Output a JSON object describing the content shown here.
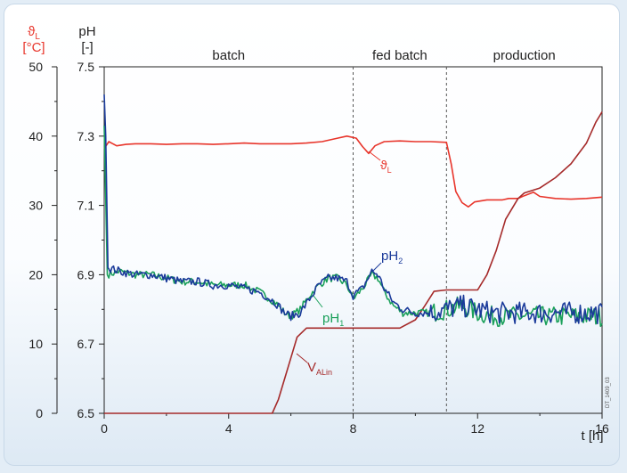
{
  "chart_data": {
    "type": "line",
    "title": "",
    "xlabel": "t [h]",
    "x_ticks": [
      0,
      4,
      8,
      12,
      16
    ],
    "xlim": [
      0,
      16
    ],
    "y_left_temp": {
      "label_symbol": "ϑ",
      "label_sub": "L",
      "label_unit": "[°C]",
      "ticks": [
        0,
        10,
        20,
        30,
        40,
        50
      ],
      "ylim": [
        0,
        50
      ],
      "color": "#e8352b"
    },
    "y_left_ph": {
      "label": "pH",
      "label_unit": "[-]",
      "ticks": [
        "6.5",
        "6.7",
        "6.9",
        "7.1",
        "7.3",
        "7.5"
      ],
      "ylim": [
        6.5,
        7.5
      ],
      "color": "#222222"
    },
    "phases": [
      {
        "name": "batch",
        "x_center": 4
      },
      {
        "name": "fed batch",
        "x_center": 9.5
      },
      {
        "name": "production",
        "x_center": 13.5
      }
    ],
    "phase_boundaries": [
      8,
      11
    ],
    "watermark": "DT_1409_03",
    "series": [
      {
        "key": "temp",
        "label_symbol": "ϑ",
        "label_sub": "L",
        "color": "#e8352b",
        "axis": "temp",
        "points": [
          [
            0,
            38.2
          ],
          [
            0.15,
            39.2
          ],
          [
            0.4,
            38.6
          ],
          [
            0.7,
            38.8
          ],
          [
            1,
            38.9
          ],
          [
            1.5,
            38.9
          ],
          [
            2,
            38.8
          ],
          [
            2.5,
            38.9
          ],
          [
            3,
            38.9
          ],
          [
            3.5,
            38.8
          ],
          [
            4,
            38.9
          ],
          [
            4.5,
            39
          ],
          [
            5,
            38.9
          ],
          [
            5.5,
            38.9
          ],
          [
            6,
            38.9
          ],
          [
            6.5,
            39
          ],
          [
            7,
            39.2
          ],
          [
            7.5,
            39.7
          ],
          [
            7.8,
            40
          ],
          [
            8.1,
            39.7
          ],
          [
            8.3,
            38.5
          ],
          [
            8.5,
            37.5
          ],
          [
            8.7,
            38.6
          ],
          [
            9,
            39.2
          ],
          [
            9.5,
            39.3
          ],
          [
            10,
            39.2
          ],
          [
            10.5,
            39.2
          ],
          [
            11,
            39.1
          ],
          [
            11.15,
            36
          ],
          [
            11.3,
            32
          ],
          [
            11.5,
            30.4
          ],
          [
            11.7,
            29.8
          ],
          [
            11.9,
            30.5
          ],
          [
            12.3,
            30.8
          ],
          [
            12.8,
            30.8
          ],
          [
            13,
            31
          ],
          [
            13.3,
            31
          ],
          [
            13.5,
            31.4
          ],
          [
            13.8,
            31.9
          ],
          [
            14,
            31.3
          ],
          [
            14.5,
            31
          ],
          [
            15,
            30.9
          ],
          [
            15.5,
            31
          ],
          [
            16,
            31.2
          ]
        ]
      },
      {
        "key": "volume",
        "label_symbol": "V",
        "label_sub": "ALin",
        "color": "#a52a2a",
        "axis": "temp",
        "points": [
          [
            0,
            0
          ],
          [
            5.4,
            0
          ],
          [
            5.6,
            2
          ],
          [
            5.8,
            5
          ],
          [
            6,
            8
          ],
          [
            6.2,
            11
          ],
          [
            6.5,
            12.3
          ],
          [
            7,
            12.3
          ],
          [
            8,
            12.3
          ],
          [
            9,
            12.3
          ],
          [
            9.5,
            12.3
          ],
          [
            10,
            13.5
          ],
          [
            10.3,
            15.5
          ],
          [
            10.6,
            17.6
          ],
          [
            11,
            17.8
          ],
          [
            11.5,
            17.8
          ],
          [
            12,
            17.8
          ],
          [
            12.3,
            20
          ],
          [
            12.6,
            23.5
          ],
          [
            12.9,
            28
          ],
          [
            13.3,
            31
          ],
          [
            13.5,
            31.8
          ],
          [
            14,
            32.5
          ],
          [
            14.5,
            34
          ],
          [
            15,
            36
          ],
          [
            15.5,
            39
          ],
          [
            15.8,
            42
          ],
          [
            16,
            43.5
          ]
        ]
      },
      {
        "key": "ph1",
        "label": "pH",
        "label_sub": "1",
        "color": "#1aa05a",
        "axis": "ph",
        "noise": 0.018,
        "points": [
          [
            0,
            7.33
          ],
          [
            0.1,
            6.9
          ],
          [
            0.5,
            6.91
          ],
          [
            1,
            6.9
          ],
          [
            1.5,
            6.9
          ],
          [
            2,
            6.89
          ],
          [
            2.5,
            6.88
          ],
          [
            3,
            6.88
          ],
          [
            3.5,
            6.87
          ],
          [
            4,
            6.87
          ],
          [
            4.5,
            6.87
          ],
          [
            5,
            6.85
          ],
          [
            5.5,
            6.82
          ],
          [
            5.8,
            6.79
          ],
          [
            6,
            6.78
          ],
          [
            6.3,
            6.8
          ],
          [
            6.6,
            6.84
          ],
          [
            6.9,
            6.87
          ],
          [
            7.2,
            6.89
          ],
          [
            7.5,
            6.89
          ],
          [
            7.8,
            6.87
          ],
          [
            8,
            6.83
          ],
          [
            8.3,
            6.86
          ],
          [
            8.6,
            6.9
          ],
          [
            8.8,
            6.89
          ],
          [
            9,
            6.85
          ],
          [
            9.3,
            6.81
          ],
          [
            9.6,
            6.79
          ],
          [
            10,
            6.79
          ],
          [
            10.5,
            6.79
          ],
          [
            11,
            6.8
          ],
          [
            11.5,
            6.81
          ],
          [
            12,
            6.79
          ],
          [
            12.5,
            6.78
          ],
          [
            13,
            6.78
          ],
          [
            14,
            6.78
          ],
          [
            15,
            6.78
          ],
          [
            16,
            6.78
          ]
        ]
      },
      {
        "key": "ph2",
        "label": "pH",
        "label_sub": "2",
        "color": "#1a3a9a",
        "axis": "ph",
        "noise": 0.02,
        "points": [
          [
            0,
            7.42
          ],
          [
            0.05,
            7.3
          ],
          [
            0.12,
            6.92
          ],
          [
            0.5,
            6.91
          ],
          [
            1,
            6.9
          ],
          [
            1.5,
            6.9
          ],
          [
            2,
            6.89
          ],
          [
            2.5,
            6.88
          ],
          [
            3,
            6.88
          ],
          [
            3.5,
            6.87
          ],
          [
            4,
            6.87
          ],
          [
            4.5,
            6.86
          ],
          [
            5,
            6.85
          ],
          [
            5.5,
            6.82
          ],
          [
            5.8,
            6.79
          ],
          [
            6,
            6.78
          ],
          [
            6.3,
            6.79
          ],
          [
            6.6,
            6.83
          ],
          [
            6.9,
            6.87
          ],
          [
            7.2,
            6.89
          ],
          [
            7.5,
            6.89
          ],
          [
            7.8,
            6.88
          ],
          [
            8,
            6.84
          ],
          [
            8.3,
            6.86
          ],
          [
            8.6,
            6.91
          ],
          [
            8.8,
            6.9
          ],
          [
            9,
            6.86
          ],
          [
            9.3,
            6.82
          ],
          [
            9.6,
            6.8
          ],
          [
            10,
            6.79
          ],
          [
            10.5,
            6.79
          ],
          [
            11,
            6.8
          ],
          [
            11.5,
            6.81
          ],
          [
            12,
            6.8
          ],
          [
            12.5,
            6.79
          ],
          [
            13,
            6.79
          ],
          [
            14,
            6.79
          ],
          [
            15,
            6.79
          ],
          [
            16,
            6.79
          ]
        ]
      }
    ]
  }
}
